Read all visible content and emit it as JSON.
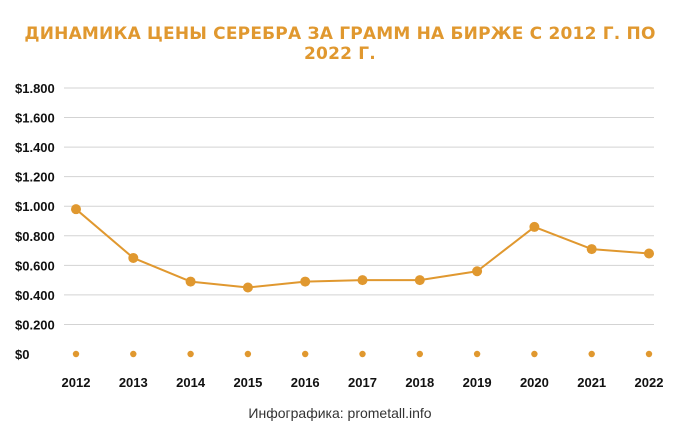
{
  "colors": {
    "line": "#e0982f",
    "title": "#e0982f",
    "grid": "#d3d3d3",
    "text": "#111111"
  },
  "credit": "Инфографика: prometall.info",
  "chart_data": {
    "type": "line",
    "title": "ДИНАМИКА ЦЕНЫ СЕРЕБРА ЗА ГРАММ НА БИРЖЕ С 2012 Г. ПО 2022 Г.",
    "xlabel": "",
    "ylabel": "",
    "categories": [
      "2012",
      "2013",
      "2014",
      "2015",
      "2016",
      "2017",
      "2018",
      "2019",
      "2020",
      "2021",
      "2022"
    ],
    "series": [
      {
        "values": [
          0.98,
          0.65,
          0.49,
          0.45,
          0.49,
          0.5,
          0.5,
          0.56,
          0.86,
          0.71,
          0.68
        ]
      },
      {
        "values": [
          0,
          0,
          0,
          0,
          0,
          0,
          0,
          0,
          0,
          0,
          0
        ]
      }
    ],
    "ylim": [
      0,
      1.8
    ],
    "yticks": [
      {
        "value": 0,
        "label": "$0"
      },
      {
        "value": 0.2,
        "label": "$0.200"
      },
      {
        "value": 0.4,
        "label": "$0.400"
      },
      {
        "value": 0.6,
        "label": "$0.600"
      },
      {
        "value": 0.8,
        "label": "$0.800"
      },
      {
        "value": 1.0,
        "label": "$1.000"
      },
      {
        "value": 1.2,
        "label": "$1.200"
      },
      {
        "value": 1.4,
        "label": "$1.400"
      },
      {
        "value": 1.6,
        "label": "$1.600"
      },
      {
        "value": 1.8,
        "label": "$1.800"
      }
    ],
    "grid": true,
    "legend": "none"
  }
}
